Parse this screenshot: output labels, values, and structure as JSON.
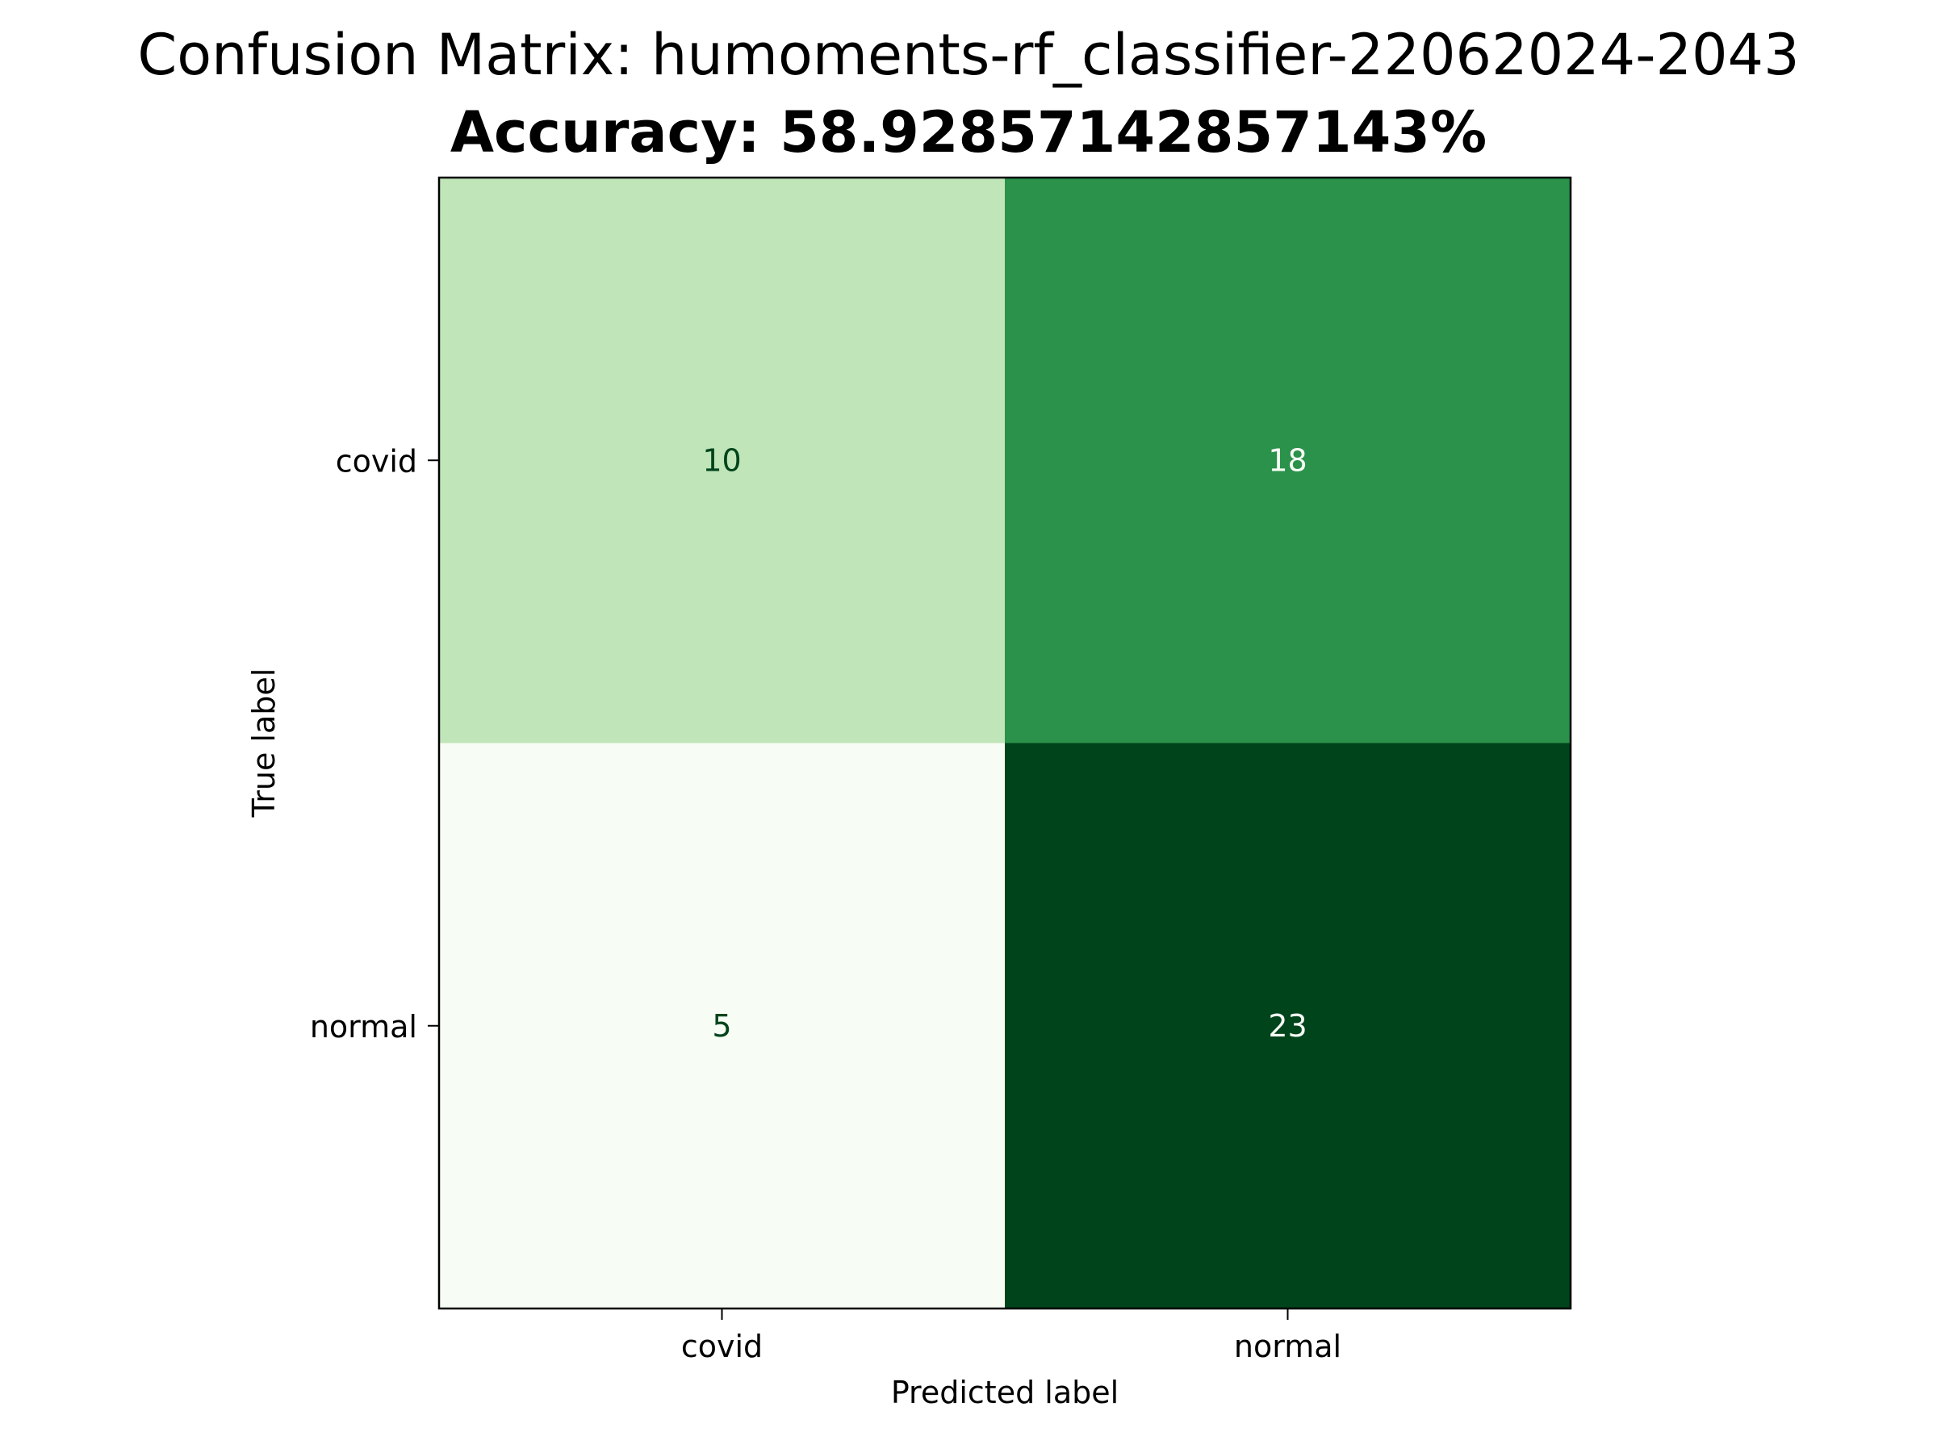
{
  "chart_data": {
    "type": "heatmap",
    "title": "Confusion Matrix: humoments-rf_classifier-22062024-2043",
    "subtitle": "Accuracy: 58.92857142857143%",
    "xlabel": "Predicted label",
    "ylabel": "True label",
    "x_categories": [
      "covid",
      "normal"
    ],
    "y_categories": [
      "covid",
      "normal"
    ],
    "values": [
      [
        10,
        18
      ],
      [
        5,
        23
      ]
    ],
    "value_range": [
      5,
      23
    ],
    "colormap": "Greens",
    "colorbar": false,
    "grid": false
  }
}
